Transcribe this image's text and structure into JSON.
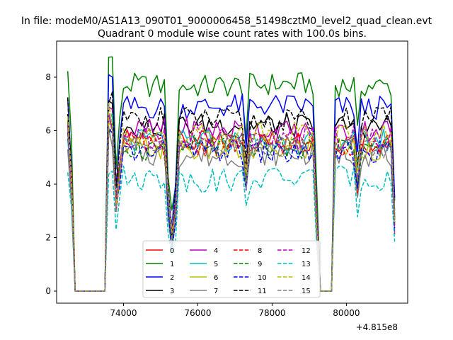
{
  "chart_data": {
    "type": "line",
    "suptitle": "In file: modeM0/AS1A13_090T01_9000006458_51498cztM0_level2_quad_clean.evt",
    "title": "Quadrant 0 module wise count rates with 100.0s bins.",
    "xlabel": "",
    "ylabel": "",
    "x_offset_label": "+4.815e8",
    "x_offset": 481500000,
    "xlim": [
      72200,
      81650
    ],
    "ylim": [
      -0.45,
      9.35
    ],
    "xticks": [
      74000,
      76000,
      78000,
      80000
    ],
    "yticks": [
      0,
      2,
      4,
      6,
      8
    ],
    "grid": false,
    "legend": {
      "location": "lower-center",
      "columns": 4
    },
    "x_start": 72500,
    "x_step": 100,
    "gaps": [
      {
        "from": 72700,
        "to": 73500
      },
      {
        "from": 79300,
        "to": 79600
      }
    ],
    "series": [
      {
        "name": "0",
        "color": "#ff0000",
        "dash": "solid",
        "level": 5.6
      },
      {
        "name": "1",
        "color": "#008000",
        "dash": "solid",
        "level": 7.7
      },
      {
        "name": "2",
        "color": "#0000ff",
        "dash": "solid",
        "level": 6.9
      },
      {
        "name": "3",
        "color": "#000000",
        "dash": "solid",
        "level": 6.2
      },
      {
        "name": "4",
        "color": "#bf00bf",
        "dash": "solid",
        "level": 6.0
      },
      {
        "name": "5",
        "color": "#00bfbf",
        "dash": "solid",
        "level": 5.6
      },
      {
        "name": "6",
        "color": "#bfbf00",
        "dash": "solid",
        "level": 5.3
      },
      {
        "name": "7",
        "color": "#808080",
        "dash": "solid",
        "level": 5.1
      },
      {
        "name": "8",
        "color": "#ff0000",
        "dash": "dashed",
        "level": 5.5
      },
      {
        "name": "9",
        "color": "#008000",
        "dash": "dashed",
        "level": 5.4
      },
      {
        "name": "10",
        "color": "#0000ff",
        "dash": "dashed",
        "level": 5.2
      },
      {
        "name": "11",
        "color": "#000000",
        "dash": "dashed",
        "level": 6.4
      },
      {
        "name": "12",
        "color": "#bf00bf",
        "dash": "dashed",
        "level": 5.7
      },
      {
        "name": "13",
        "color": "#00bfbf",
        "dash": "dashed",
        "level": 4.2
      },
      {
        "name": "14",
        "color": "#bfbf00",
        "dash": "dashed",
        "level": 5.9
      },
      {
        "name": "15",
        "color": "#808080",
        "dash": "dashed",
        "level": 5.4
      }
    ]
  }
}
